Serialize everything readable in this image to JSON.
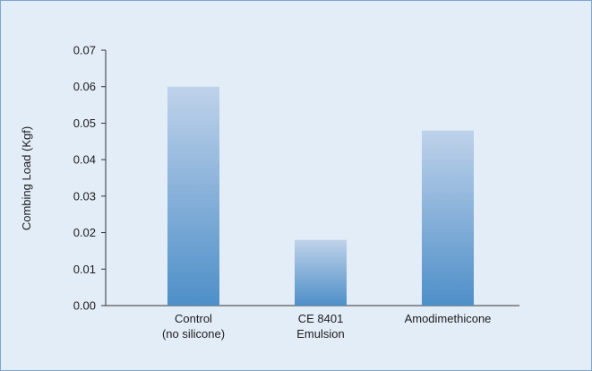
{
  "chart_data": {
    "type": "bar",
    "categories": [
      "Control\n(no silicone)",
      "CE 8401\nEmulsion",
      "Amodimethicone"
    ],
    "values": [
      0.06,
      0.018,
      0.048
    ],
    "ylabel": "Combing Load (Kgf)",
    "xlabel": "",
    "ylim": [
      0,
      0.07
    ],
    "yticks": [
      "0.00",
      "0.01",
      "0.02",
      "0.03",
      "0.04",
      "0.05",
      "0.06",
      "0.07"
    ],
    "grid": false,
    "legend": "none"
  },
  "colors": {
    "background": "#e3edf8",
    "border": "#7fa6cf",
    "bar_top": "#bfd2ea",
    "bar_bottom": "#4e8fc8",
    "axis": "#333333"
  }
}
